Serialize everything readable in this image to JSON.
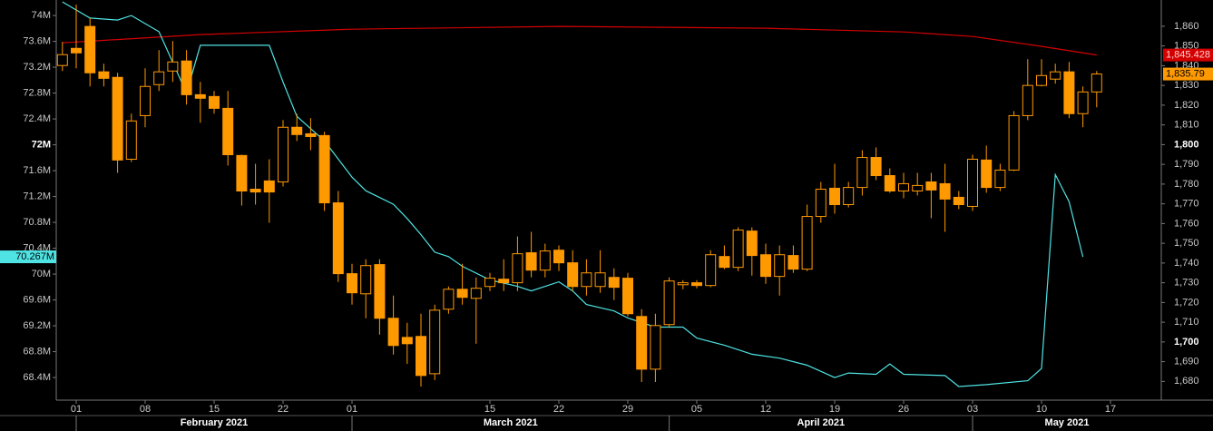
{
  "chart_data": {
    "type": "candlestick",
    "color": "#ff9900",
    "axis": "y2",
    "last_label": "1,835.79",
    "x": [
      "2021-01-29",
      "2021-02-01",
      "2021-02-02",
      "2021-02-03",
      "2021-02-04",
      "2021-02-05",
      "2021-02-08",
      "2021-02-09",
      "2021-02-10",
      "2021-02-11",
      "2021-02-12",
      "2021-02-15",
      "2021-02-16",
      "2021-02-17",
      "2021-02-18",
      "2021-02-19",
      "2021-02-22",
      "2021-02-23",
      "2021-02-24",
      "2021-02-25",
      "2021-02-26",
      "2021-03-01",
      "2021-03-02",
      "2021-03-03",
      "2021-03-04",
      "2021-03-05",
      "2021-03-08",
      "2021-03-09",
      "2021-03-10",
      "2021-03-11",
      "2021-03-12",
      "2021-03-15",
      "2021-03-16",
      "2021-03-17",
      "2021-03-18",
      "2021-03-19",
      "2021-03-22",
      "2021-03-23",
      "2021-03-24",
      "2021-03-25",
      "2021-03-26",
      "2021-03-29",
      "2021-03-30",
      "2021-03-31",
      "2021-04-01",
      "2021-04-02",
      "2021-04-05",
      "2021-04-06",
      "2021-04-07",
      "2021-04-08",
      "2021-04-09",
      "2021-04-12",
      "2021-04-13",
      "2021-04-14",
      "2021-04-15",
      "2021-04-16",
      "2021-04-19",
      "2021-04-20",
      "2021-04-21",
      "2021-04-22",
      "2021-04-23",
      "2021-04-26",
      "2021-04-27",
      "2021-04-28",
      "2021-04-29",
      "2021-04-30",
      "2021-05-03",
      "2021-05-04",
      "2021-05-05",
      "2021-05-06",
      "2021-05-07",
      "2021-05-10",
      "2021-05-11",
      "2021-05-12",
      "2021-05-13",
      "2021-05-14"
    ],
    "open": [
      1840.1,
      1848.8,
      1859.9,
      1836.9,
      1834.1,
      1792.6,
      1814.7,
      1830.4,
      1837.3,
      1842.4,
      1825.3,
      1824.4,
      1818.4,
      1794.5,
      1777.4,
      1781.6,
      1781.1,
      1808.8,
      1805.5,
      1804.6,
      1770.5,
      1734.6,
      1724.4,
      1739.2,
      1712.0,
      1702.3,
      1702.8,
      1683.9,
      1716.6,
      1726.7,
      1722.1,
      1728.1,
      1731.8,
      1730.0,
      1745.2,
      1736.4,
      1746.5,
      1740.1,
      1728.1,
      1728.1,
      1732.7,
      1732.3,
      1712.9,
      1686.2,
      1708.8,
      1729.0,
      1730.0,
      1728.6,
      1743.3,
      1737.8,
      1756.2,
      1744.2,
      1733.2,
      1743.8,
      1736.9,
      1763.6,
      1777.9,
      1769.6,
      1778.3,
      1793.5,
      1784.3,
      1776.5,
      1776.5,
      1781.1,
      1780.2,
      1773.3,
      1768.7,
      1792.2,
      1778.3,
      1787.1,
      1814.7,
      1830.0,
      1833.2,
      1836.9,
      1815.7,
      1826.7
    ],
    "high": [
      1852.1,
      1871.0,
      1864.1,
      1841.0,
      1836.4,
      1815.7,
      1838.7,
      1847.9,
      1852.5,
      1847.9,
      1831.8,
      1827.2,
      1827.2,
      1794.9,
      1790.3,
      1792.6,
      1812.4,
      1815.7,
      1813.4,
      1806.5,
      1776.5,
      1739.6,
      1741.9,
      1741.9,
      1723.5,
      1709.7,
      1714.3,
      1718.9,
      1728.1,
      1739.6,
      1732.7,
      1735.0,
      1741.9,
      1753.5,
      1755.8,
      1749.8,
      1748.9,
      1746.5,
      1741.9,
      1746.5,
      1737.3,
      1735.0,
      1716.6,
      1714.3,
      1732.7,
      1731.3,
      1731.3,
      1746.5,
      1748.9,
      1758.1,
      1758.1,
      1749.8,
      1748.9,
      1748.9,
      1769.6,
      1781.1,
      1790.3,
      1781.1,
      1797.2,
      1798.6,
      1788.0,
      1785.7,
      1785.7,
      1785.7,
      1790.3,
      1776.5,
      1794.9,
      1799.5,
      1790.3,
      1817.0,
      1843.3,
      1843.3,
      1841.0,
      1841.9,
      1829.5,
      1837.3
    ],
    "low": [
      1837.3,
      1838.7,
      1829.5,
      1829.5,
      1785.7,
      1791.2,
      1808.8,
      1827.2,
      1831.8,
      1820.3,
      1811.1,
      1815.7,
      1789.4,
      1769.1,
      1769.6,
      1760.4,
      1778.8,
      1801.8,
      1797.2,
      1766.4,
      1730.4,
      1718.9,
      1712.0,
      1703.7,
      1693.6,
      1688.9,
      1677.4,
      1680.7,
      1714.3,
      1718.9,
      1699.1,
      1725.8,
      1725.8,
      1725.8,
      1732.7,
      1732.7,
      1735.9,
      1725.8,
      1723.5,
      1724.9,
      1721.2,
      1712.9,
      1679.7,
      1679.7,
      1707.4,
      1726.7,
      1727.2,
      1727.7,
      1736.9,
      1735.9,
      1733.6,
      1729.5,
      1723.5,
      1735.0,
      1735.9,
      1760.4,
      1765.0,
      1768.2,
      1774.2,
      1782.0,
      1775.6,
      1772.8,
      1774.2,
      1762.7,
      1755.8,
      1767.3,
      1766.4,
      1775.6,
      1776.5,
      1786.6,
      1812.4,
      1829.5,
      1830.9,
      1813.4,
      1808.8,
      1818.9
    ],
    "close": [
      1845.6,
      1846.5,
      1836.4,
      1833.6,
      1792.2,
      1812.0,
      1829.5,
      1836.9,
      1841.9,
      1825.3,
      1823.5,
      1818.4,
      1794.9,
      1776.5,
      1776.0,
      1776.0,
      1808.8,
      1805.1,
      1804.1,
      1770.5,
      1734.6,
      1724.9,
      1738.7,
      1712.0,
      1698.2,
      1699.1,
      1683.0,
      1716.1,
      1726.7,
      1722.6,
      1727.2,
      1732.3,
      1730.0,
      1744.7,
      1736.4,
      1746.1,
      1740.1,
      1728.1,
      1735.0,
      1735.0,
      1727.7,
      1714.3,
      1686.2,
      1708.3,
      1730.9,
      1730.0,
      1728.6,
      1744.2,
      1737.8,
      1756.7,
      1743.8,
      1733.2,
      1744.2,
      1736.9,
      1763.6,
      1777.4,
      1769.6,
      1778.3,
      1793.5,
      1784.3,
      1776.5,
      1780.2,
      1779.3,
      1777.0,
      1772.4,
      1769.6,
      1792.6,
      1778.3,
      1787.1,
      1814.7,
      1830.0,
      1835.0,
      1836.9,
      1815.7,
      1826.7,
      1835.79
    ],
    "series": [
      {
        "color": "#d40000",
        "axis": "y2",
        "last_label": "1,845.428",
        "x": [
          "2021-01-29",
          "2021-02-12",
          "2021-03-01",
          "2021-03-22",
          "2021-04-12",
          "2021-04-26",
          "2021-05-03",
          "2021-05-10",
          "2021-05-14"
        ],
        "values": [
          1851.6,
          1855.8,
          1858.5,
          1859.9,
          1859.0,
          1857.1,
          1854.8,
          1849.8,
          1845.428
        ]
      },
      {
        "color": "#4fe3e3",
        "axis": "y",
        "last_label": "70.267M",
        "x": [
          "2021-01-29",
          "2021-02-02",
          "2021-02-04",
          "2021-02-05",
          "2021-02-09",
          "2021-02-11",
          "2021-02-12",
          "2021-02-19",
          "2021-02-22",
          "2021-02-23",
          "2021-02-25",
          "2021-03-01",
          "2021-03-02",
          "2021-03-04",
          "2021-03-05",
          "2021-03-08",
          "2021-03-09",
          "2021-03-10",
          "2021-03-11",
          "2021-03-15",
          "2021-03-17",
          "2021-03-18",
          "2021-03-22",
          "2021-03-23",
          "2021-03-24",
          "2021-03-26",
          "2021-03-29",
          "2021-03-31",
          "2021-04-02",
          "2021-04-05",
          "2021-04-07",
          "2021-04-09",
          "2021-04-13",
          "2021-04-15",
          "2021-04-19",
          "2021-04-20",
          "2021-04-22",
          "2021-04-23",
          "2021-04-26",
          "2021-04-29",
          "2021-04-30",
          "2021-05-04",
          "2021-05-07",
          "2021-05-10",
          "2021-05-11",
          "2021-05-12",
          "2021-05-13"
        ],
        "values": [
          74.21,
          73.96,
          73.93,
          74.0,
          73.75,
          72.8,
          73.54,
          73.54,
          72.97,
          72.44,
          72.06,
          71.5,
          71.29,
          71.08,
          70.86,
          70.61,
          70.34,
          70.27,
          70.12,
          69.91,
          69.81,
          69.74,
          69.88,
          69.74,
          69.53,
          69.43,
          69.32,
          69.18,
          69.18,
          69.01,
          68.9,
          68.76,
          68.7,
          68.59,
          68.4,
          68.47,
          68.45,
          68.61,
          68.45,
          68.43,
          68.26,
          68.29,
          68.35,
          68.54,
          71.54,
          71.12,
          70.267
        ]
      }
    ],
    "ylim": [
      68.05,
      74.24
    ],
    "yticks": [
      {
        "value": 68.4,
        "label": "68.4M"
      },
      {
        "value": 68.8,
        "label": "68.8M"
      },
      {
        "value": 69.2,
        "label": "69.2M"
      },
      {
        "value": 69.6,
        "label": "69.6M"
      },
      {
        "value": 70,
        "label": "70M"
      },
      {
        "value": 70.4,
        "label": "70.4M"
      },
      {
        "value": 70.8,
        "label": "70.8M"
      },
      {
        "value": 71.2,
        "label": "71.2M"
      },
      {
        "value": 71.6,
        "label": "71.6M"
      },
      {
        "value": 72,
        "label": "72M",
        "bold": true
      },
      {
        "value": 72.4,
        "label": "72.4M"
      },
      {
        "value": 72.8,
        "label": "72.8M"
      },
      {
        "value": 73.2,
        "label": "73.2M"
      },
      {
        "value": 73.6,
        "label": "73.6M"
      },
      {
        "value": 74,
        "label": "74M"
      }
    ],
    "y2lim": [
      1670.5,
      1873.3
    ],
    "y2ticks": [
      {
        "value": 1680,
        "label": "1,680"
      },
      {
        "value": 1690,
        "label": "1,690"
      },
      {
        "value": 1700,
        "label": "1,700",
        "bold": true
      },
      {
        "value": 1710,
        "label": "1,710"
      },
      {
        "value": 1720,
        "label": "1,720"
      },
      {
        "value": 1730,
        "label": "1,730"
      },
      {
        "value": 1740,
        "label": "1,740"
      },
      {
        "value": 1750,
        "label": "1,750"
      },
      {
        "value": 1760,
        "label": "1,760"
      },
      {
        "value": 1770,
        "label": "1,770"
      },
      {
        "value": 1780,
        "label": "1,780"
      },
      {
        "value": 1790,
        "label": "1,790"
      },
      {
        "value": 1800,
        "label": "1,800",
        "bold": true
      },
      {
        "value": 1810,
        "label": "1,810"
      },
      {
        "value": 1820,
        "label": "1,820"
      },
      {
        "value": 1830,
        "label": "1,830"
      },
      {
        "value": 1840,
        "label": "1,840"
      },
      {
        "value": 1850,
        "label": "1,850"
      },
      {
        "value": 1860,
        "label": "1,860"
      }
    ],
    "xticks": [
      {
        "value": "2021-02-01",
        "label": "01"
      },
      {
        "value": "2021-02-08",
        "label": "08"
      },
      {
        "value": "2021-02-15",
        "label": "15"
      },
      {
        "value": "2021-02-22",
        "label": "22"
      },
      {
        "value": "2021-03-01",
        "label": "01"
      },
      {
        "value": "2021-03-15",
        "label": "15"
      },
      {
        "value": "2021-03-22",
        "label": "22"
      },
      {
        "value": "2021-03-29",
        "label": "29"
      },
      {
        "value": "2021-04-05",
        "label": "05"
      },
      {
        "value": "2021-04-12",
        "label": "12"
      },
      {
        "value": "2021-04-19",
        "label": "19"
      },
      {
        "value": "2021-04-26",
        "label": "26"
      },
      {
        "value": "2021-05-03",
        "label": "03"
      },
      {
        "value": "2021-05-10",
        "label": "10"
      },
      {
        "value": "2021-05-17",
        "label": "17"
      }
    ],
    "month_labels": [
      {
        "value": "2021-02-01",
        "label": "February 2021"
      },
      {
        "value": "2021-03-01",
        "label": "March 2021"
      },
      {
        "value": "2021-04-01",
        "label": "April 2021"
      },
      {
        "value": "2021-05-01",
        "label": "May 2021"
      }
    ]
  }
}
